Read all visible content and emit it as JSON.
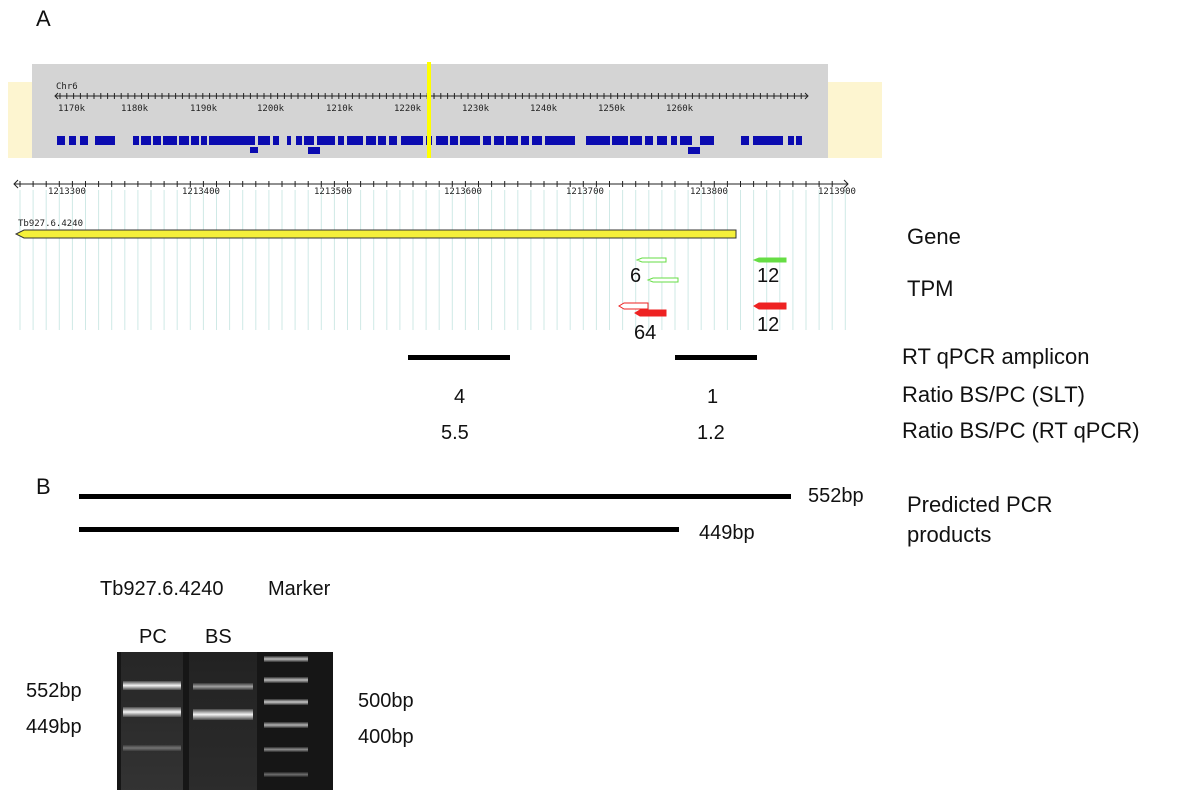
{
  "panels": {
    "a": "A",
    "b": "B"
  },
  "overview": {
    "chrom": "Chr6",
    "ticks": [
      "1170k",
      "1180k",
      "1190k",
      "1200k",
      "1210k",
      "1220k",
      "1230k",
      "1240k",
      "1250k",
      "1260k"
    ],
    "colors": {
      "panel_bg": "#d4d4d4",
      "halo": "#fdf5d0",
      "blocks": "#0b0bb0",
      "highlight": "#ffff00"
    }
  },
  "detail": {
    "ticks": [
      "1213300",
      "1213400",
      "1213500",
      "1213600",
      "1213700",
      "1213800",
      "1213900"
    ],
    "gene_id": "Tb927.6.4240",
    "gene_color": "#f5f03a"
  },
  "tpm": {
    "green_left": "6",
    "green_right": "12",
    "red_left": "64",
    "red_right": "12",
    "colors": {
      "green": "#66dd44",
      "red": "#ee2222"
    }
  },
  "labels": {
    "gene": "Gene",
    "tpm": "TPM",
    "amplicon": "RT qPCR amplicon",
    "ratio_slt": "Ratio BS/PC (SLT)",
    "ratio_qpcr": "Ratio BS/PC (RT qPCR)"
  },
  "ratios": {
    "slt_left": "4",
    "slt_right": "1",
    "qpcr_left": "5.5",
    "qpcr_right": "1.2"
  },
  "pcr": {
    "product1": "552bp",
    "product2": "449bp",
    "label_line1": "Predicted PCR",
    "label_line2": "products"
  },
  "gel": {
    "sample_title": "Tb927.6.4240",
    "marker_title": "Marker",
    "lane_pc": "PC",
    "lane_bs": "BS",
    "left_552": "552bp",
    "left_449": "449bp",
    "right_500": "500bp",
    "right_400": "400bp"
  }
}
